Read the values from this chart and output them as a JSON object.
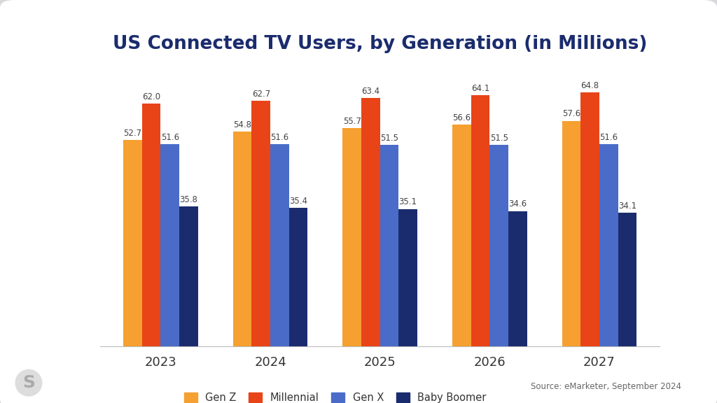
{
  "title": "US Connected TV Users, by Generation (in Millions)",
  "years": [
    "2023",
    "2024",
    "2025",
    "2026",
    "2027"
  ],
  "generations": [
    "Gen Z",
    "Millennial",
    "Gen X",
    "Baby Boomer"
  ],
  "colors": [
    "#F5A030",
    "#E84418",
    "#4A6CC8",
    "#1B2C6E"
  ],
  "values": {
    "Gen Z": [
      52.7,
      54.8,
      55.7,
      56.6,
      57.6
    ],
    "Millennial": [
      62.0,
      62.7,
      63.4,
      64.1,
      64.8
    ],
    "Gen X": [
      51.6,
      51.6,
      51.5,
      51.5,
      51.6
    ],
    "Baby Boomer": [
      35.8,
      35.4,
      35.1,
      34.6,
      34.1
    ]
  },
  "outer_bg": "#D8D8DC",
  "card_bg": "#FFFFFF",
  "plot_bg": "#F2F2F5",
  "title_color": "#1B2C6E",
  "title_fontsize": 19,
  "bar_width": 0.17,
  "ylim": [
    0,
    72
  ],
  "source_text": "Source: eMarketer, September 2024",
  "label_fontsize": 8.5,
  "tick_fontsize": 13
}
